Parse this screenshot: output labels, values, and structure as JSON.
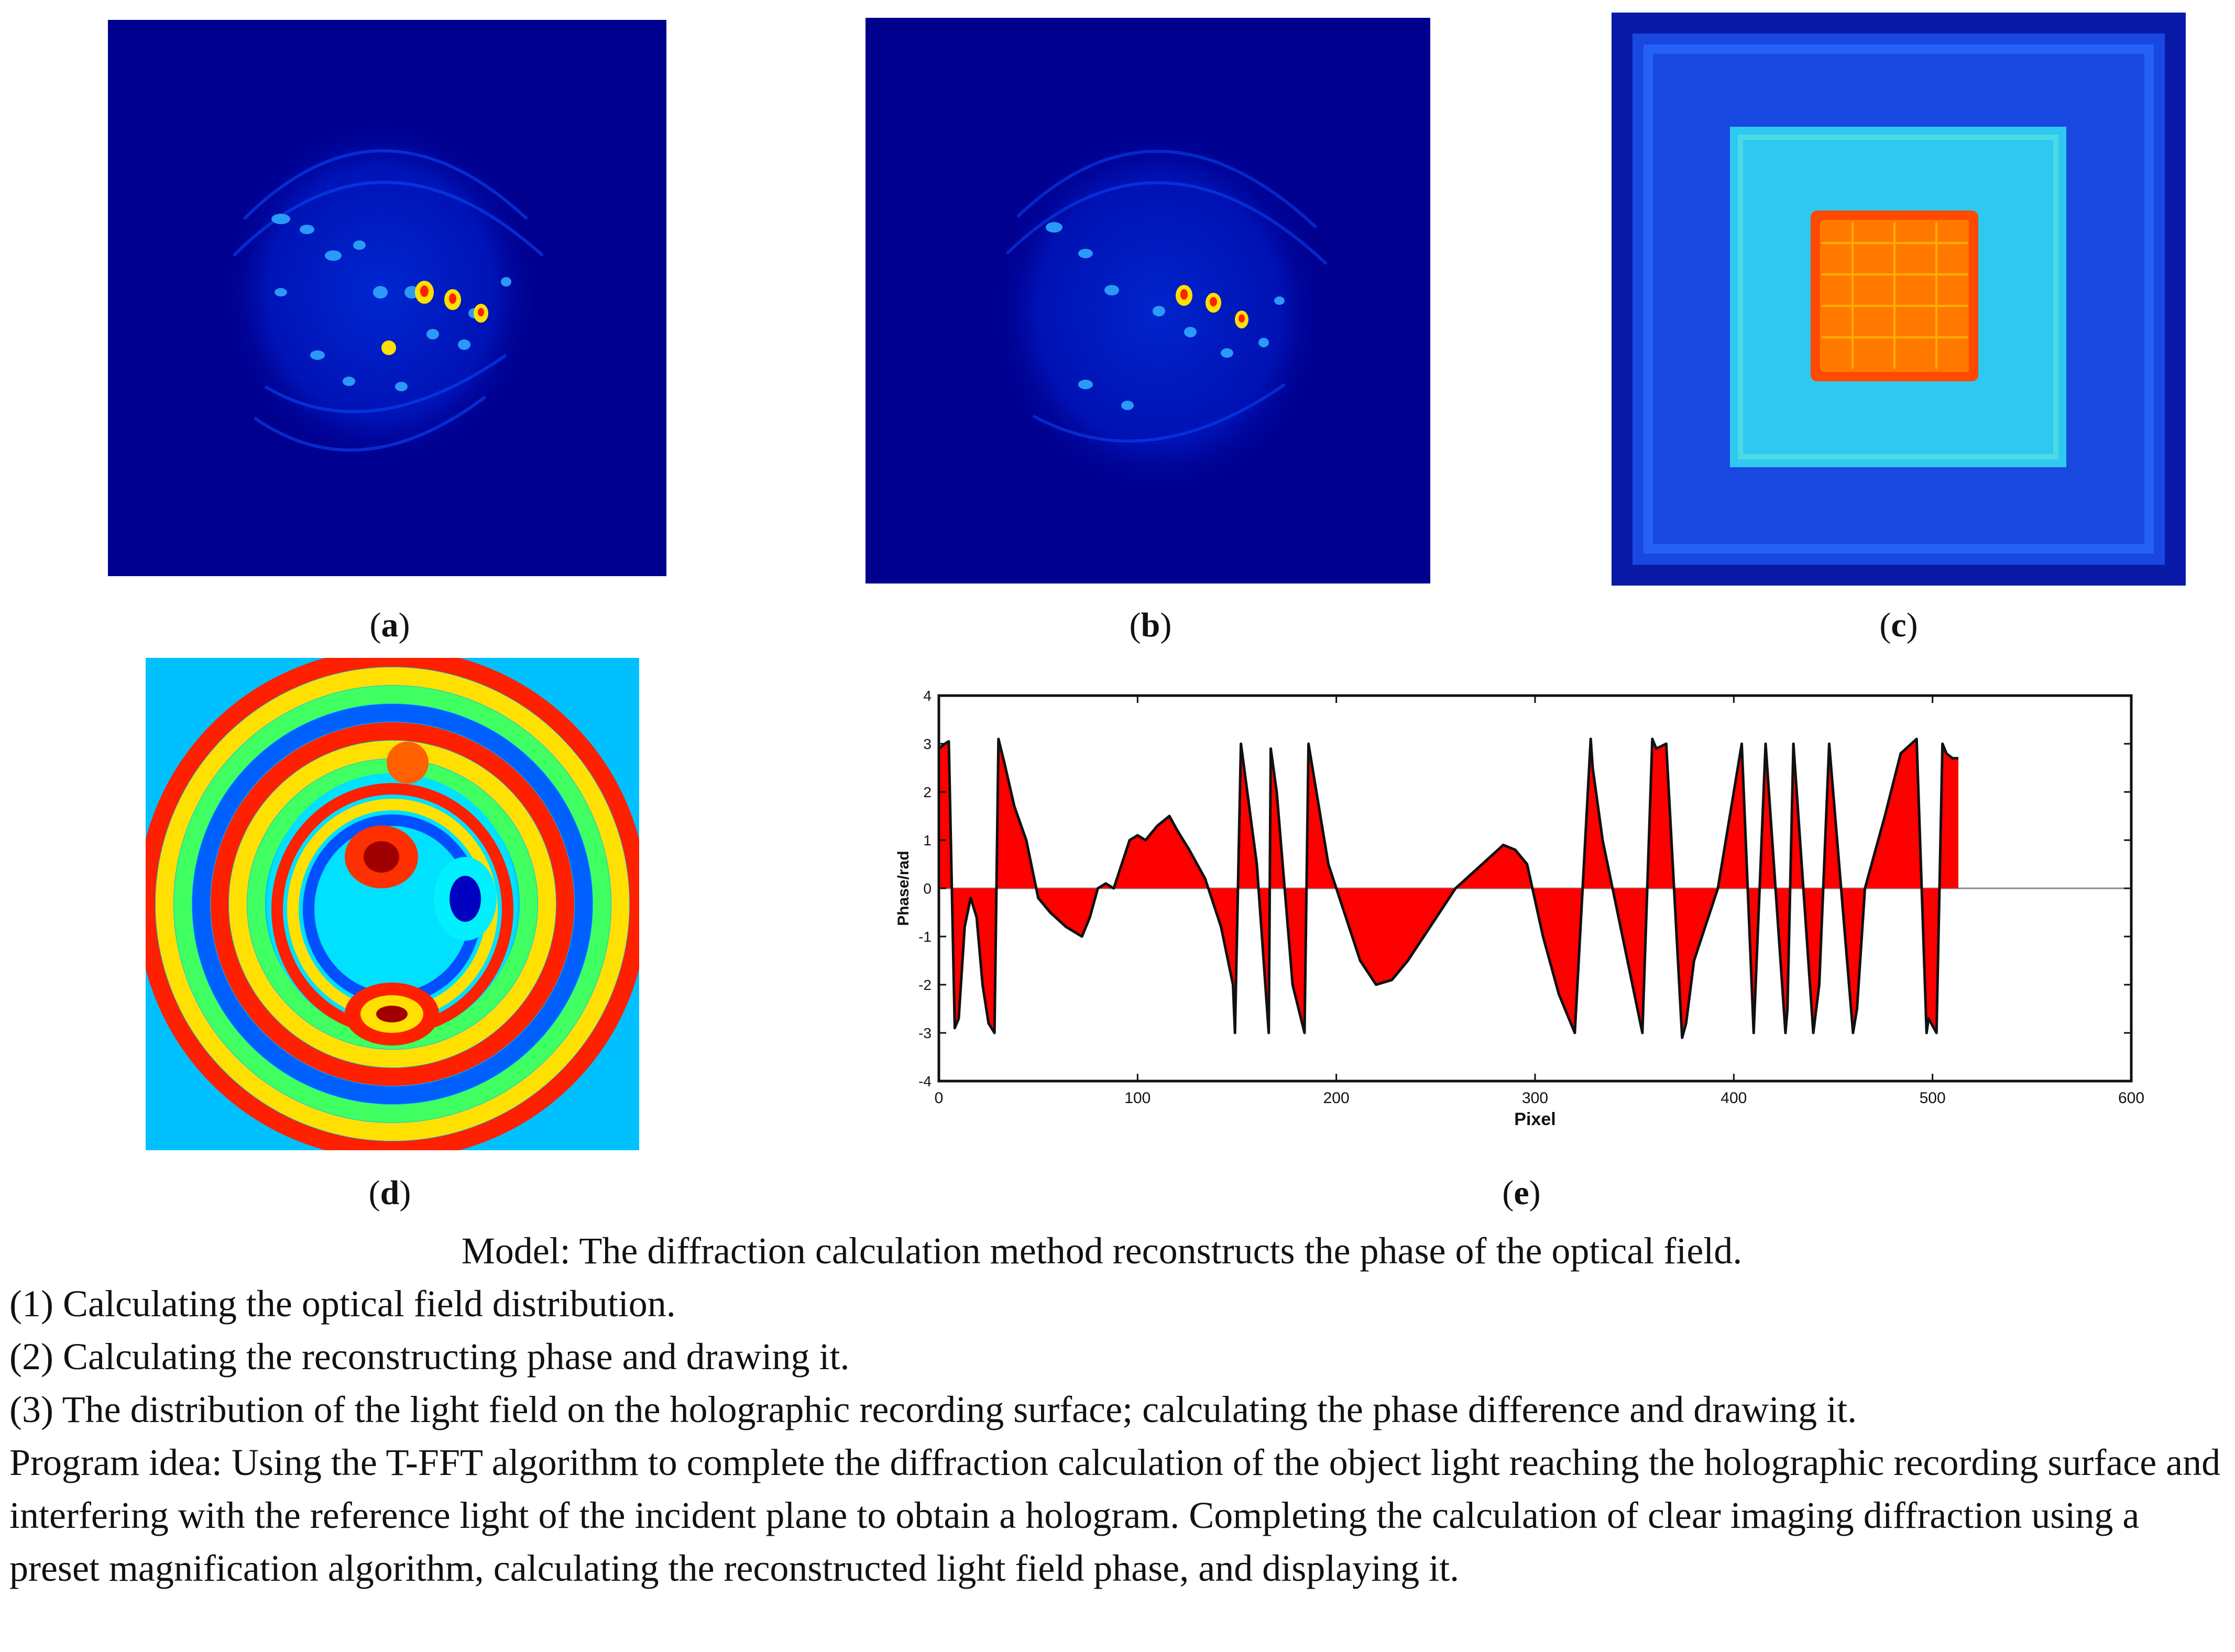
{
  "panels": {
    "a": {
      "label": "a"
    },
    "b": {
      "label": "b"
    },
    "c": {
      "label": "c"
    },
    "d": {
      "label": "d"
    },
    "e": {
      "label": "e"
    }
  },
  "colors": {
    "jet_dark_blue": "#00008f",
    "jet_blue": "#0040ff",
    "jet_cyan": "#00e0ff",
    "jet_yellow": "#ffe000",
    "jet_red": "#ff2000",
    "fill_red": "#ff0000"
  },
  "chart_data": {
    "type": "area",
    "title": "",
    "xlabel": "Pixel",
    "ylabel": "Phase/rad",
    "xlim": [
      0,
      600
    ],
    "ylim": [
      -4,
      4
    ],
    "xticks": [
      "0",
      "100",
      "200",
      "300",
      "400",
      "500",
      "600"
    ],
    "yticks": [
      "4",
      "3",
      "2",
      "1",
      "0",
      "-1",
      "-2",
      "-3",
      "-4"
    ],
    "x": [
      0,
      3,
      5,
      8,
      10,
      13,
      16,
      19,
      22,
      25,
      28,
      30,
      33,
      38,
      44,
      50,
      56,
      64,
      72,
      76,
      80,
      84,
      88,
      92,
      96,
      100,
      104,
      110,
      116,
      120,
      126,
      134,
      142,
      148,
      149,
      152,
      160,
      166,
      167,
      170,
      178,
      184,
      186,
      190,
      196,
      204,
      212,
      220,
      228,
      236,
      244,
      252,
      260,
      268,
      276,
      284,
      290,
      296,
      304,
      312,
      320,
      328,
      329,
      334,
      344,
      354,
      359,
      361,
      366,
      374,
      376,
      380,
      392,
      404,
      410,
      411,
      416,
      426,
      427,
      430,
      440,
      443,
      448,
      460,
      462,
      466,
      476,
      484,
      492,
      497,
      498,
      502,
      505,
      507,
      510,
      513
    ],
    "y": [
      2.9,
      3.0,
      3.05,
      -2.9,
      -2.7,
      -0.8,
      -0.2,
      -0.6,
      -2.0,
      -2.8,
      -3.0,
      3.1,
      2.6,
      1.7,
      1.0,
      -0.2,
      -0.5,
      -0.8,
      -1.0,
      -0.6,
      0.0,
      0.1,
      0.0,
      0.5,
      1.0,
      1.1,
      1.0,
      1.3,
      1.5,
      1.2,
      0.8,
      0.2,
      -0.8,
      -2.0,
      -3.0,
      3.0,
      0.5,
      -3.0,
      2.9,
      2.0,
      -2.0,
      -3.0,
      3.0,
      2.0,
      0.5,
      -0.5,
      -1.5,
      -2.0,
      -1.9,
      -1.5,
      -1.0,
      -0.5,
      0.0,
      0.3,
      0.6,
      0.9,
      0.8,
      0.5,
      -1.0,
      -2.2,
      -3.0,
      3.1,
      2.5,
      1.0,
      -1.0,
      -3.0,
      3.1,
      2.9,
      3.0,
      -3.1,
      -2.8,
      -1.5,
      0.0,
      3.0,
      -3.0,
      -2.0,
      3.0,
      -3.0,
      -2.5,
      3.0,
      -3.0,
      -2.0,
      3.0,
      -3.0,
      -2.5,
      0.0,
      1.5,
      2.8,
      3.1,
      -3.0,
      -2.7,
      -3.0,
      3.0,
      2.8,
      2.7,
      2.7
    ]
  },
  "captions": {
    "a": "a",
    "b": "b",
    "c": "c",
    "d": "d",
    "e": "e"
  },
  "text": {
    "model": "Model: The diffraction calculation method reconstructs the phase of the optical field.",
    "step1": "(1) Calculating the optical field distribution.",
    "step2": "(2) Calculating the reconstructing phase and drawing it.",
    "step3": "(3) The distribution of the light field on the holographic recording surface; calculating the phase difference and drawing it.",
    "program": "Program idea: Using the T-FFT algorithm to complete the diffraction calculation of the object light reaching the holographic recording surface and interfering with the reference light of the incident plane to obtain a hologram. Completing the calculation of clear imaging diffraction using a preset magnification algorithm, calculating the reconstructed light field phase, and displaying it."
  }
}
